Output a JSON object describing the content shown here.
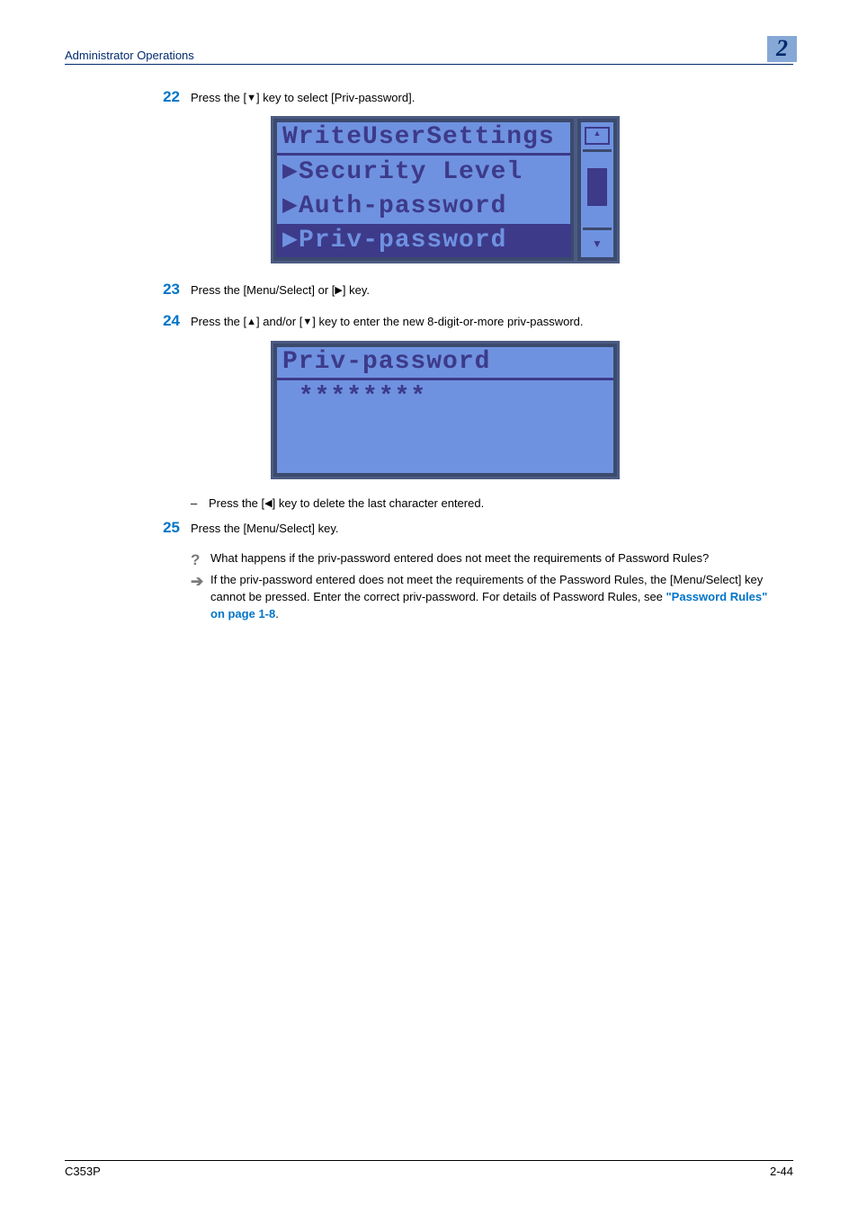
{
  "header": {
    "title": "Administrator Operations",
    "chapter": "2"
  },
  "steps": {
    "s22": {
      "num": "22",
      "text_before": "Press the [",
      "key": "▼",
      "text_after": "] key to select [Priv-password]."
    },
    "s23": {
      "num": "23",
      "text_before": "Press the [Menu/Select] or [",
      "key": "▶",
      "text_after": "] key."
    },
    "s24": {
      "num": "24",
      "text_before": "Press the [",
      "key1": "▲",
      "mid": "] and/or [",
      "key2": "▼",
      "text_after": "] key to enter the new 8-digit-or-more priv-password."
    },
    "s24sub": {
      "bullet": "–",
      "text_before": "Press the [",
      "key": "◀",
      "text_after": "] key to delete the last character entered."
    },
    "s25": {
      "num": "25",
      "text": "Press the [Menu/Select] key."
    }
  },
  "qa": {
    "q_icon": "?",
    "q_text": "What happens if the priv-password entered does not meet the requirements of Password Rules?",
    "a_icon": "➔",
    "a_text_1": "If the priv-password entered does not meet the requirements of the Password Rules, the [Menu/Select] key cannot be pressed. Enter the correct priv-password. For details of Password Rules, see ",
    "a_link": "\"Password Rules\" on page 1-8",
    "a_text_2": "."
  },
  "screen1": {
    "title": "WriteUserSettings",
    "row1": "Security Level",
    "row2": "Auth-password",
    "row3": "Priv-password",
    "marker": "▶",
    "colors": {
      "bg": "#6f92e0",
      "fg": "#3d3a8a",
      "border": "#3c4a6e"
    }
  },
  "screen2": {
    "title": "Priv-password",
    "value": "********",
    "colors": {
      "bg": "#6f92e0",
      "fg": "#3d3a8a",
      "border": "#3c4a6e"
    }
  },
  "footer": {
    "model": "C353P",
    "page": "2-44"
  }
}
